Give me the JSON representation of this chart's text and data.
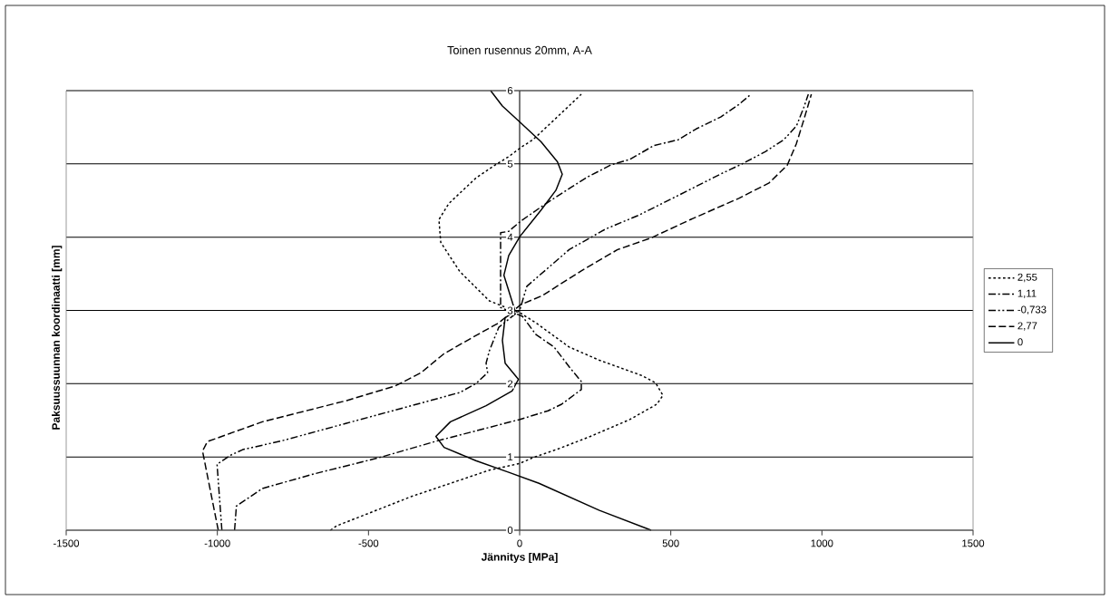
{
  "chart_data": {
    "type": "line",
    "title": "Toinen rusennus 20mm, A-A",
    "xlabel": "Jännitys [MPa]",
    "ylabel": "Paksuussuunnan koordinaatti [mm]",
    "xlim": [
      -1500,
      1500
    ],
    "xticks": [
      -1500,
      -1000,
      -500,
      0,
      500,
      1000,
      1500
    ],
    "ylim": [
      0,
      6
    ],
    "yticks": [
      0,
      1,
      2,
      3,
      4,
      5,
      6
    ],
    "grid": "y",
    "legend": "right",
    "marker": "none",
    "series": [
      {
        "name": "2,55",
        "color": "#000000",
        "line_style": "dotted",
        "x": [
          -626,
          -605,
          -358,
          -100,
          -1,
          44,
          134,
          234,
          364,
          454,
          474,
          450,
          405,
          264,
          164,
          54,
          4,
          -100,
          -198,
          -261,
          -267,
          -234,
          -144,
          -79,
          -36,
          6,
          44,
          114,
          204
        ],
        "values": [
          0,
          0.06,
          0.46,
          0.82,
          0.91,
          0.99,
          1.12,
          1.28,
          1.51,
          1.72,
          1.84,
          2.01,
          2.11,
          2.32,
          2.5,
          2.83,
          2.96,
          3.13,
          3.53,
          3.93,
          4.24,
          4.46,
          4.81,
          4.99,
          5.1,
          5.23,
          5.33,
          5.6,
          5.95
        ]
      },
      {
        "name": "1,11",
        "color": "#000000",
        "line_style": "dashdot",
        "x": [
          -943,
          -937,
          -851,
          -679,
          -465,
          -272,
          -1,
          94,
          139,
          204,
          204,
          164,
          114,
          54,
          9,
          -63,
          -63,
          -36,
          4,
          84,
          174,
          224,
          304,
          364,
          444,
          525,
          585,
          665,
          725,
          765
        ],
        "values": [
          0,
          0.33,
          0.57,
          0.77,
          0.99,
          1.22,
          1.51,
          1.63,
          1.72,
          1.92,
          2.03,
          2.23,
          2.5,
          2.67,
          2.92,
          3.04,
          4.06,
          4.08,
          4.22,
          4.45,
          4.69,
          4.82,
          4.99,
          5.06,
          5.25,
          5.33,
          5.48,
          5.64,
          5.81,
          5.95
        ]
      },
      {
        "name": "-0,733",
        "color": "#000000",
        "line_style": "dashdotdot",
        "x": [
          -985,
          -1001,
          -958,
          -916,
          -787,
          -573,
          -358,
          -198,
          -145,
          -106,
          -111,
          -100,
          -69,
          0,
          24,
          164,
          284,
          394,
          525,
          664,
          736,
          814,
          874,
          916,
          940,
          955
        ],
        "values": [
          0,
          0.9,
          1.02,
          1.1,
          1.22,
          1.46,
          1.7,
          1.88,
          2.0,
          2.15,
          2.28,
          2.45,
          2.77,
          3.0,
          3.33,
          3.83,
          4.11,
          4.3,
          4.57,
          4.86,
          5.0,
          5.17,
          5.33,
          5.52,
          5.77,
          5.95
        ]
      },
      {
        "name": "2,77",
        "color": "#000000",
        "line_style": "dashed",
        "x": [
          -997,
          -1049,
          -1033,
          -851,
          -572,
          -411,
          -326,
          -250,
          -165,
          -69,
          4,
          74,
          204,
          324,
          435,
          565,
          725,
          825,
          885,
          915,
          940,
          965
        ],
        "values": [
          0,
          1.08,
          1.21,
          1.48,
          1.77,
          1.97,
          2.15,
          2.41,
          2.61,
          2.83,
          3.08,
          3.2,
          3.54,
          3.83,
          3.99,
          4.24,
          4.53,
          4.74,
          4.98,
          5.27,
          5.6,
          5.95
        ]
      },
      {
        "name": "0",
        "color": "#000000",
        "line_style": "solid",
        "x": [
          435,
          264,
          64,
          -36,
          -145,
          -250,
          -277,
          -229,
          -111,
          -25,
          -4,
          -48,
          -57,
          -48,
          -15,
          -52,
          -36,
          1,
          71,
          120,
          141,
          125,
          71,
          1,
          -57,
          -96
        ],
        "values": [
          0,
          0.27,
          0.64,
          0.79,
          0.95,
          1.13,
          1.28,
          1.48,
          1.7,
          1.9,
          2.06,
          2.28,
          2.59,
          2.9,
          2.99,
          3.48,
          3.75,
          4.01,
          4.37,
          4.64,
          4.86,
          5.03,
          5.3,
          5.57,
          5.79,
          6.0
        ]
      }
    ]
  }
}
